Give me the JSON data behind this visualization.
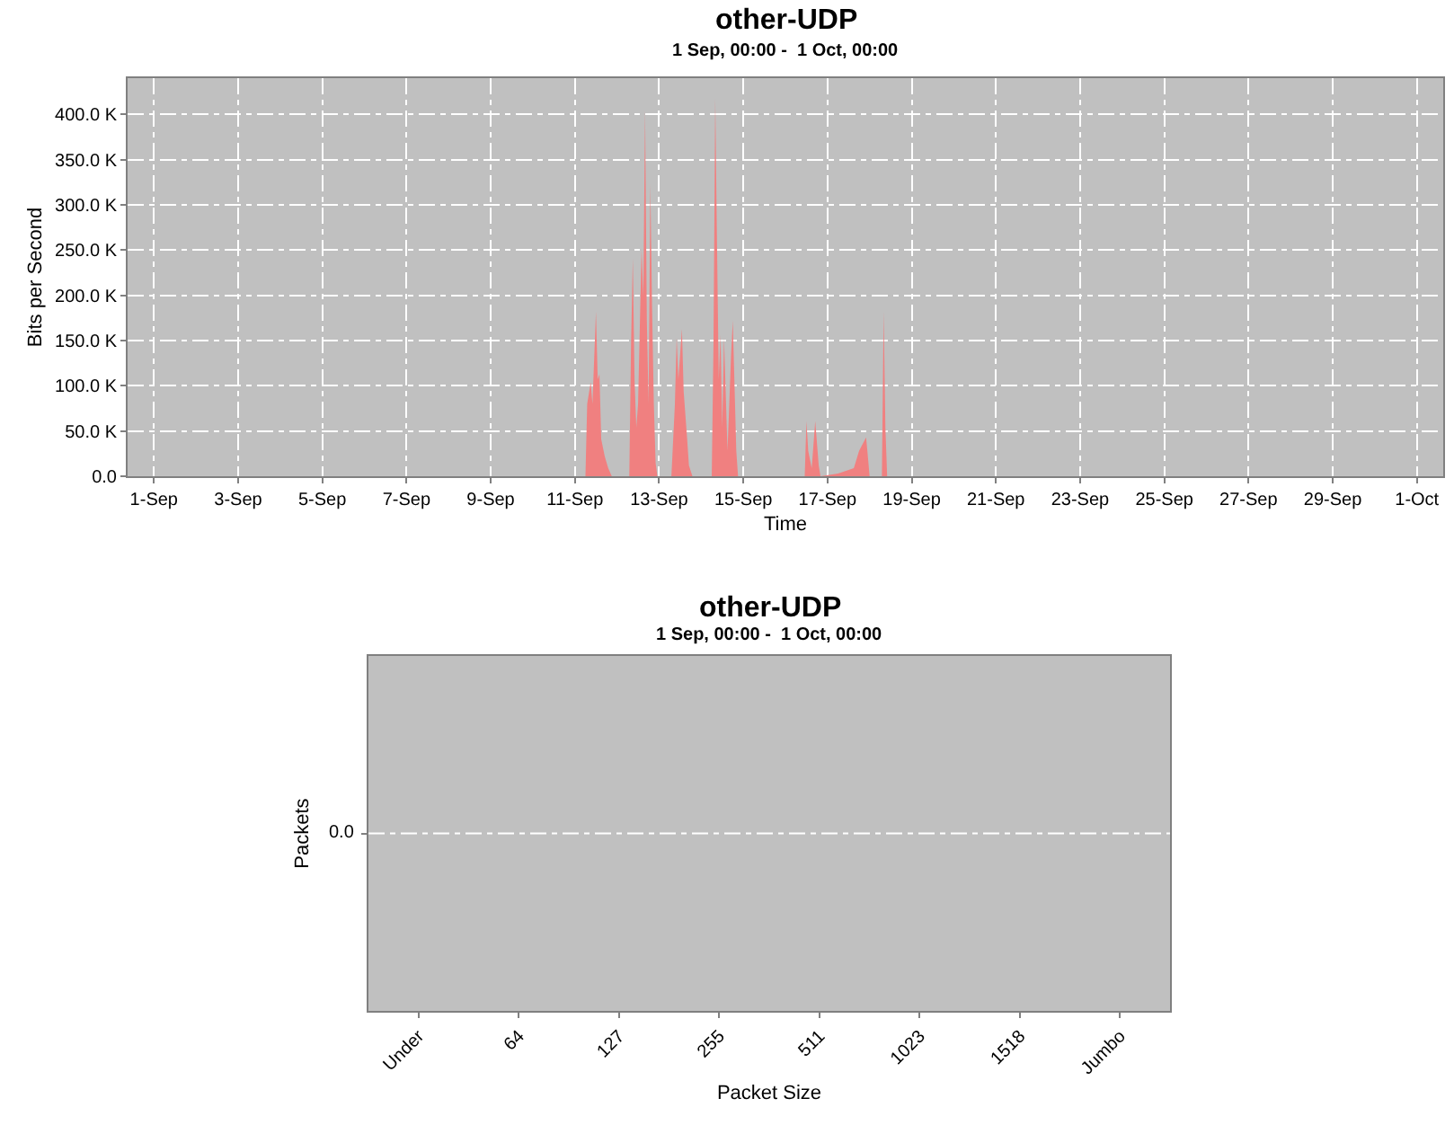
{
  "chart_data": [
    {
      "type": "area",
      "title": "other-UDP",
      "subtitle": "1 Sep, 00:00 -  1 Oct, 00:00",
      "xlabel": "Time",
      "ylabel": "Bits per Second",
      "series": [
        {
          "color": "#f08080",
          "x": [
            "--09-01T00:00",
            "--09-11T06:00",
            "--09-11T07:00",
            "--09-11T09:00",
            "--09-11T10:00",
            "--09-11T12:00",
            "--09-11T13:00",
            "--09-11T14:00",
            "--09-11T15:00",
            "--09-11T17:00",
            "--09-11T19:00",
            "--09-11T21:00",
            "--09-12T07:00",
            "--09-12T08:00",
            "--09-12T09:00",
            "--09-12T10:00",
            "--09-12T11:00",
            "--09-12T12:00",
            "--09-12T14:00",
            "--09-12T15:00",
            "--09-12T16:00",
            "--09-12T17:00",
            "--09-12T18:00",
            "--09-12T19:00",
            "--09-12T20:00",
            "--09-12T21:00",
            "--09-12T22:00",
            "--09-12T23:00",
            "--09-13T07:00",
            "--09-13T09:00",
            "--09-13T10:00",
            "--09-13T11:00",
            "--09-13T13:00",
            "--09-13T14:00",
            "--09-13T16:00",
            "--09-13T17:00",
            "--09-13T19:00",
            "--09-14T06:00",
            "--09-14T07:00",
            "--09-14T08:00",
            "--09-14T09:00",
            "--09-14T10:00",
            "--09-14T11:00",
            "--09-14T12:00",
            "--09-14T13:00",
            "--09-14T15:00",
            "--09-14T17:00",
            "--09-14T18:00",
            "--09-14T20:00",
            "--09-14T21:00",
            "--09-16T11:00",
            "--09-16T12:00",
            "--09-16T13:00",
            "--09-16T15:00",
            "--09-16T17:00",
            "--09-16T19:00",
            "--09-16T20:00",
            "--09-17T06:00",
            "--09-17T15:00",
            "--09-17T18:00",
            "--09-17T22:00",
            "--09-17T23:00",
            "--09-18T00:00",
            "--09-18T07:00",
            "--09-18T08:00",
            "--09-18T09:00",
            "--09-18T10:00",
            "--10-01T00:00"
          ],
          "values": [
            0,
            0,
            80000,
            104000,
            80000,
            182000,
            107000,
            113000,
            41000,
            22000,
            9000,
            0,
            0,
            146000,
            241000,
            107000,
            54000,
            80000,
            251000,
            199000,
            405000,
            172000,
            80000,
            323000,
            186000,
            80000,
            15000,
            0,
            0,
            80000,
            153000,
            107000,
            163000,
            94000,
            41000,
            12000,
            0,
            0,
            146000,
            418000,
            258000,
            107000,
            156000,
            54000,
            153000,
            28000,
            133000,
            172000,
            28000,
            0,
            0,
            61000,
            28000,
            9000,
            61000,
            12000,
            0,
            3000,
            9000,
            28000,
            43000,
            22000,
            0,
            0,
            182000,
            54000,
            0,
            0
          ]
        }
      ],
      "xlim": [
        "--08-31T09:00",
        "--10-01T15:00"
      ],
      "xticks": [
        {
          "value": "--09-01",
          "label": "1-Sep"
        },
        {
          "value": "--09-03",
          "label": "3-Sep"
        },
        {
          "value": "--09-05",
          "label": "5-Sep"
        },
        {
          "value": "--09-07",
          "label": "7-Sep"
        },
        {
          "value": "--09-09",
          "label": "9-Sep"
        },
        {
          "value": "--09-11",
          "label": "11-Sep"
        },
        {
          "value": "--09-13",
          "label": "13-Sep"
        },
        {
          "value": "--09-15",
          "label": "15-Sep"
        },
        {
          "value": "--09-17",
          "label": "17-Sep"
        },
        {
          "value": "--09-19",
          "label": "19-Sep"
        },
        {
          "value": "--09-21",
          "label": "21-Sep"
        },
        {
          "value": "--09-23",
          "label": "23-Sep"
        },
        {
          "value": "--09-25",
          "label": "25-Sep"
        },
        {
          "value": "--09-27",
          "label": "27-Sep"
        },
        {
          "value": "--09-29",
          "label": "29-Sep"
        },
        {
          "value": "--10-01",
          "label": "1-Oct"
        }
      ],
      "ylim": [
        0,
        440000
      ],
      "yticks": [
        {
          "value": 0,
          "label": "0.0"
        },
        {
          "value": 50000,
          "label": "50.0 K"
        },
        {
          "value": 100000,
          "label": "100.0 K"
        },
        {
          "value": 150000,
          "label": "150.0 K"
        },
        {
          "value": 200000,
          "label": "200.0 K"
        },
        {
          "value": 250000,
          "label": "250.0 K"
        },
        {
          "value": 300000,
          "label": "300.0 K"
        },
        {
          "value": 350000,
          "label": "350.0 K"
        },
        {
          "value": 400000,
          "label": "400.0 K"
        }
      ],
      "grid": true
    },
    {
      "type": "other",
      "title": "other-UDP",
      "subtitle": "1 Sep, 00:00 -  1 Oct, 00:00",
      "xlabel": "Packet Size",
      "ylabel": "Packets",
      "categories": [
        "Under",
        "64",
        "127",
        "255",
        "511",
        "1023",
        "1518",
        "Jumbo"
      ],
      "annotations": [
        "0.0"
      ]
    }
  ]
}
